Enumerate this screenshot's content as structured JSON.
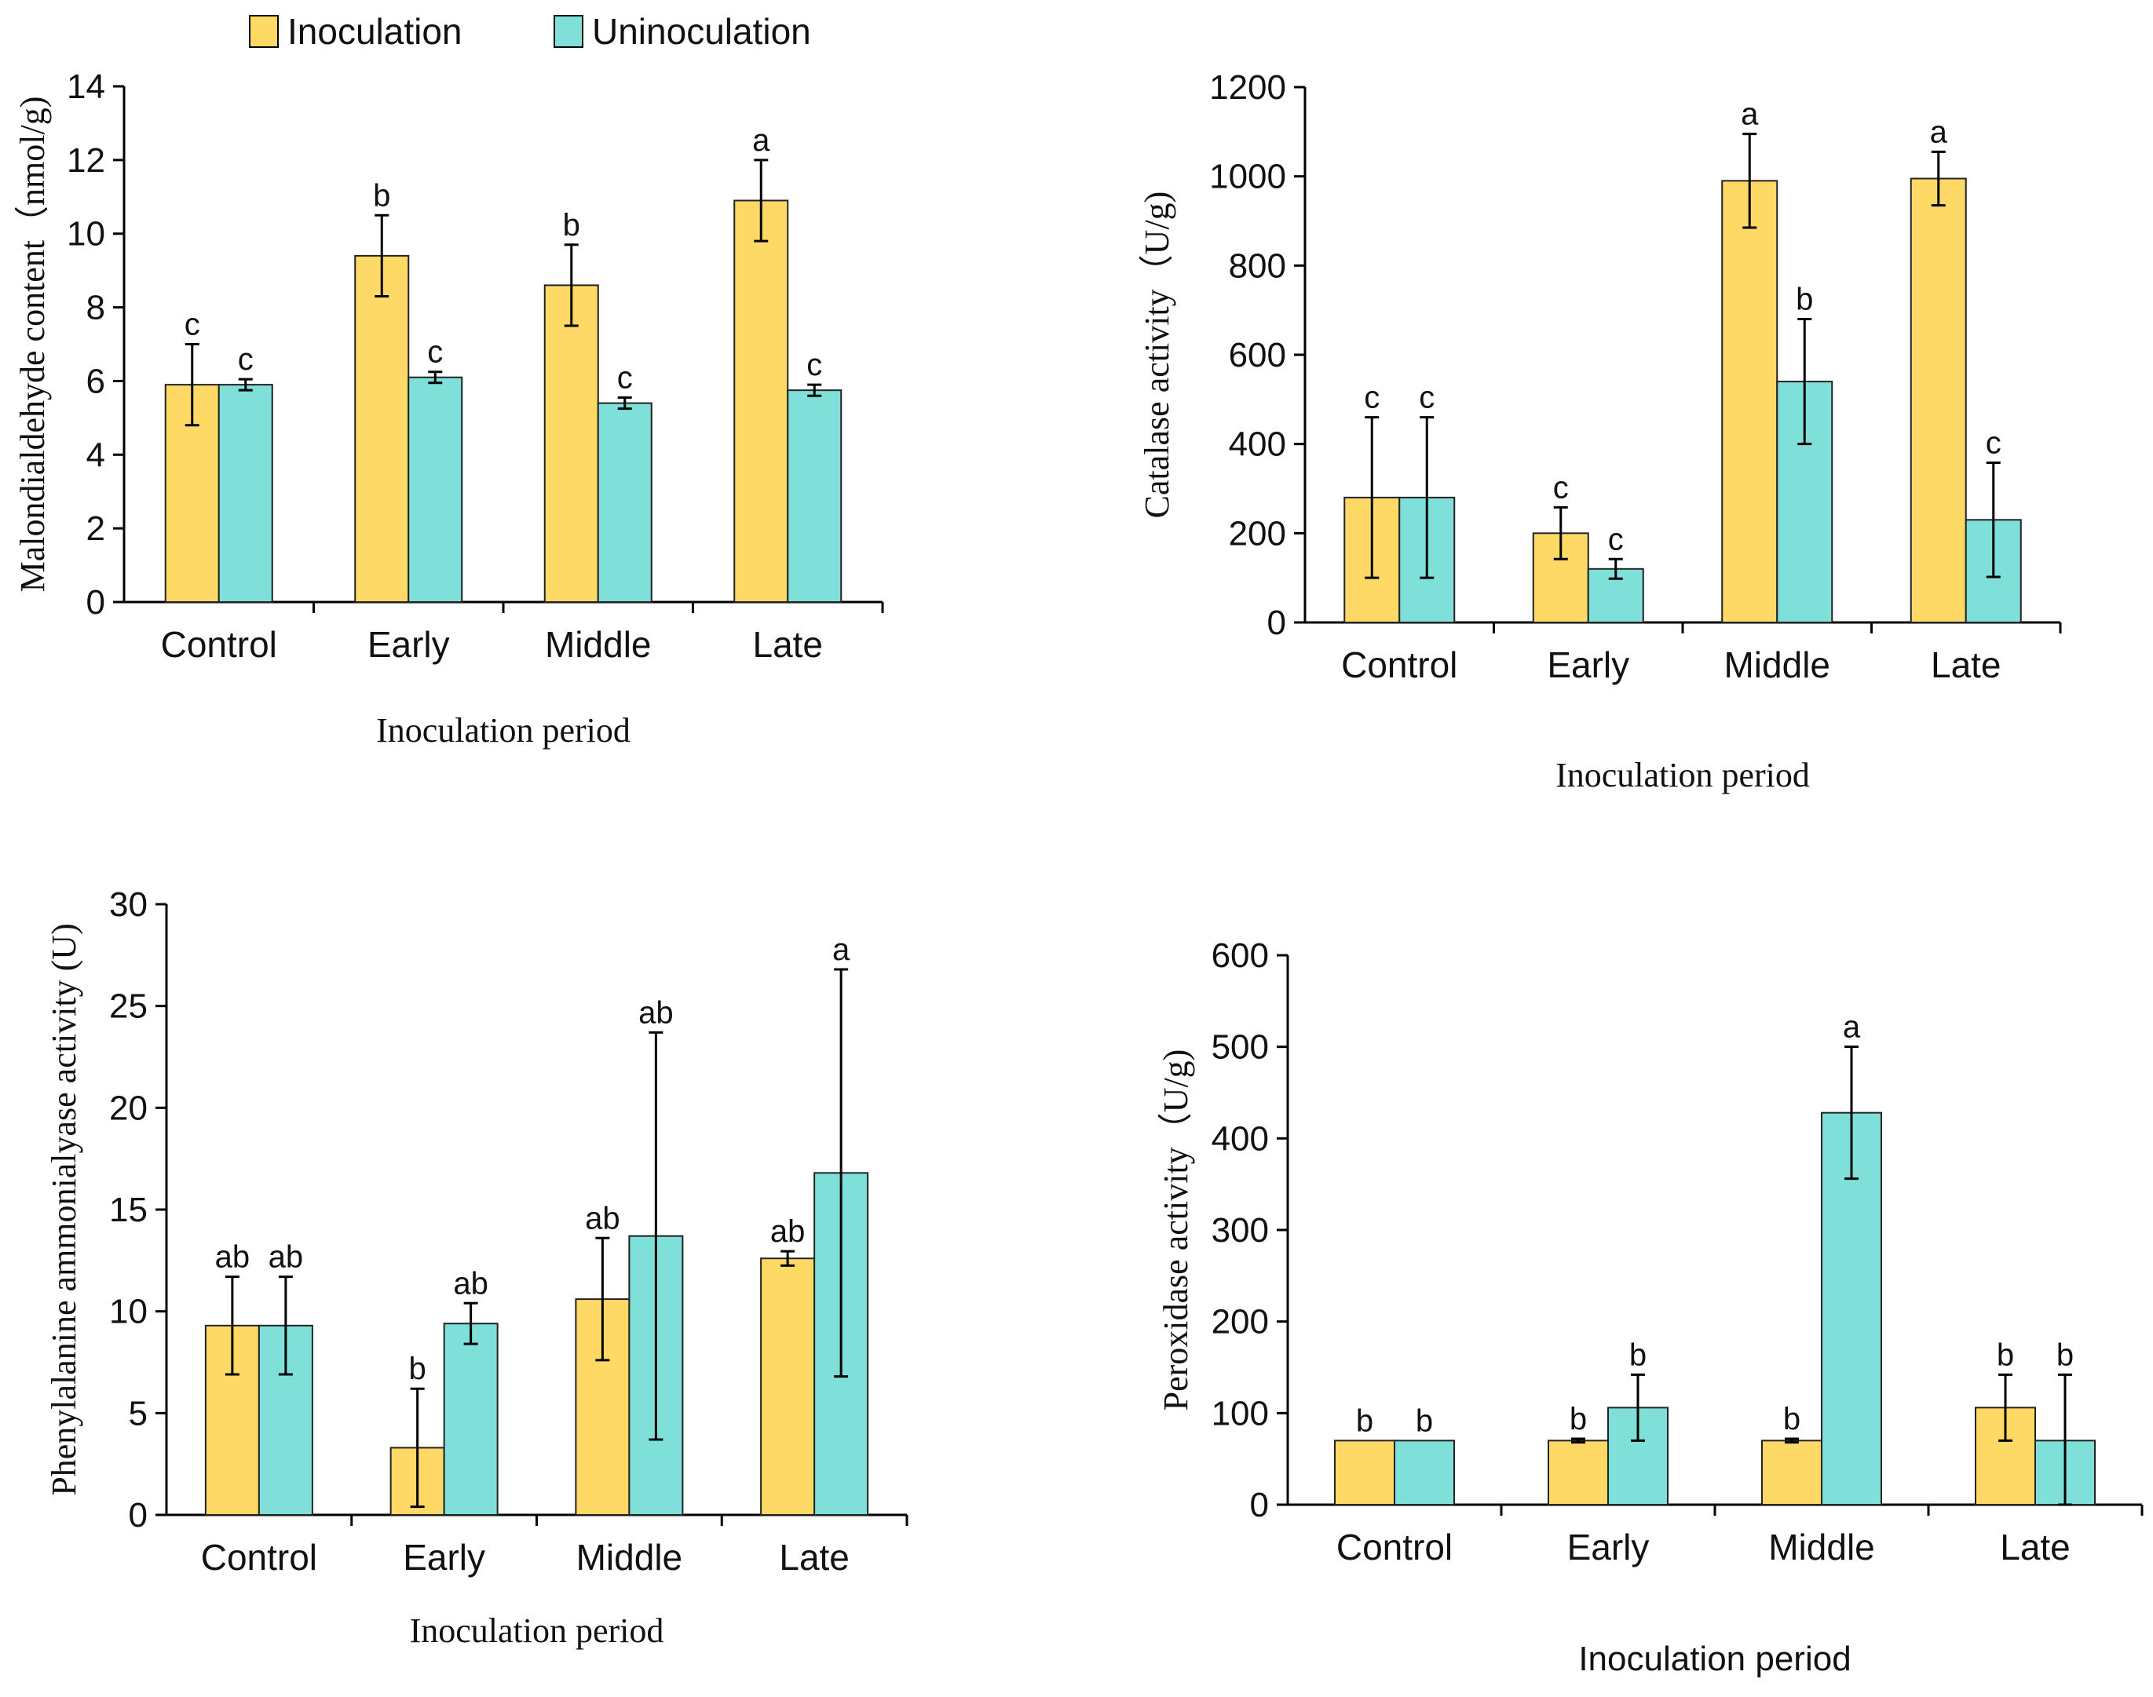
{
  "legend": {
    "items": [
      {
        "label": "Inoculation",
        "color": "#FFD966"
      },
      {
        "label": "Uninoculation",
        "color": "#7FE0D9"
      }
    ]
  },
  "chart_data": [
    {
      "id": "mda",
      "type": "bar",
      "ylabel": "Malondialdehyde content（nmol/g)",
      "xlabel": "Inoculation period",
      "ylim": [
        0,
        14
      ],
      "yticks": [
        0,
        2,
        4,
        6,
        8,
        10,
        12,
        14
      ],
      "categories": [
        "Control",
        "Early",
        "Middle",
        "Late"
      ],
      "series": [
        {
          "name": "Inoculation",
          "values": [
            5.9,
            9.4,
            8.6,
            10.9
          ],
          "errors": [
            1.1,
            1.1,
            1.1,
            1.1
          ],
          "sig": [
            "c",
            "b",
            "b",
            "a"
          ]
        },
        {
          "name": "Uninoculation",
          "values": [
            5.9,
            6.1,
            5.4,
            5.75
          ],
          "errors": [
            0.15,
            0.15,
            0.15,
            0.15
          ],
          "sig": [
            "c",
            "c",
            "c",
            "c"
          ]
        }
      ]
    },
    {
      "id": "cat",
      "type": "bar",
      "ylabel": "Catalase activity（U/g)",
      "xlabel": "Inoculation period",
      "ylim": [
        0,
        1200
      ],
      "yticks": [
        0,
        200,
        400,
        600,
        800,
        1000,
        1200
      ],
      "categories": [
        "Control",
        "Early",
        "Middle",
        "Late"
      ],
      "series": [
        {
          "name": "Inoculation",
          "values": [
            280,
            200,
            990,
            995
          ],
          "errors": [
            180,
            58,
            105,
            60
          ],
          "sig": [
            "c",
            "c",
            "a",
            "a"
          ]
        },
        {
          "name": "Uninoculation",
          "values": [
            280,
            120,
            540,
            230
          ],
          "errors": [
            180,
            22,
            140,
            128
          ],
          "sig": [
            "c",
            "c",
            "b",
            "c"
          ]
        }
      ]
    },
    {
      "id": "pal",
      "type": "bar",
      "ylabel": "Phenylalanine ammonialyase activity (U)",
      "xlabel": "Inoculation period",
      "ylim": [
        0,
        30
      ],
      "yticks": [
        0,
        5,
        10,
        15,
        20,
        25,
        30
      ],
      "categories": [
        "Control",
        "Early",
        "Middle",
        "Late"
      ],
      "series": [
        {
          "name": "Inoculation",
          "values": [
            9.3,
            3.3,
            10.6,
            12.6
          ],
          "errors": [
            2.4,
            2.9,
            3.0,
            0.35
          ],
          "sig": [
            "ab",
            "b",
            "ab",
            "ab"
          ]
        },
        {
          "name": "Uninoculation",
          "values": [
            9.3,
            9.4,
            13.7,
            16.8
          ],
          "errors": [
            2.4,
            1.0,
            10.0,
            10.0
          ],
          "sig": [
            "ab",
            "ab",
            "ab",
            "a"
          ]
        }
      ]
    },
    {
      "id": "pod",
      "type": "bar",
      "ylabel": "Peroxidase activity（U/g)",
      "xlabel": "Inoculation period",
      "ylim": [
        0,
        600
      ],
      "yticks": [
        0,
        100,
        200,
        300,
        400,
        500,
        600
      ],
      "categories": [
        "Control",
        "Early",
        "Middle",
        "Late"
      ],
      "series": [
        {
          "name": "Inoculation",
          "values": [
            70,
            70,
            70,
            106
          ],
          "errors": [
            0,
            2,
            2,
            36
          ],
          "sig": [
            "b",
            "b",
            "b",
            "b"
          ]
        },
        {
          "name": "Uninoculation",
          "values": [
            70,
            106,
            428,
            70
          ],
          "errors": [
            0,
            36,
            72,
            72
          ],
          "sig": [
            "b",
            "b",
            "a",
            "b"
          ]
        }
      ]
    }
  ]
}
